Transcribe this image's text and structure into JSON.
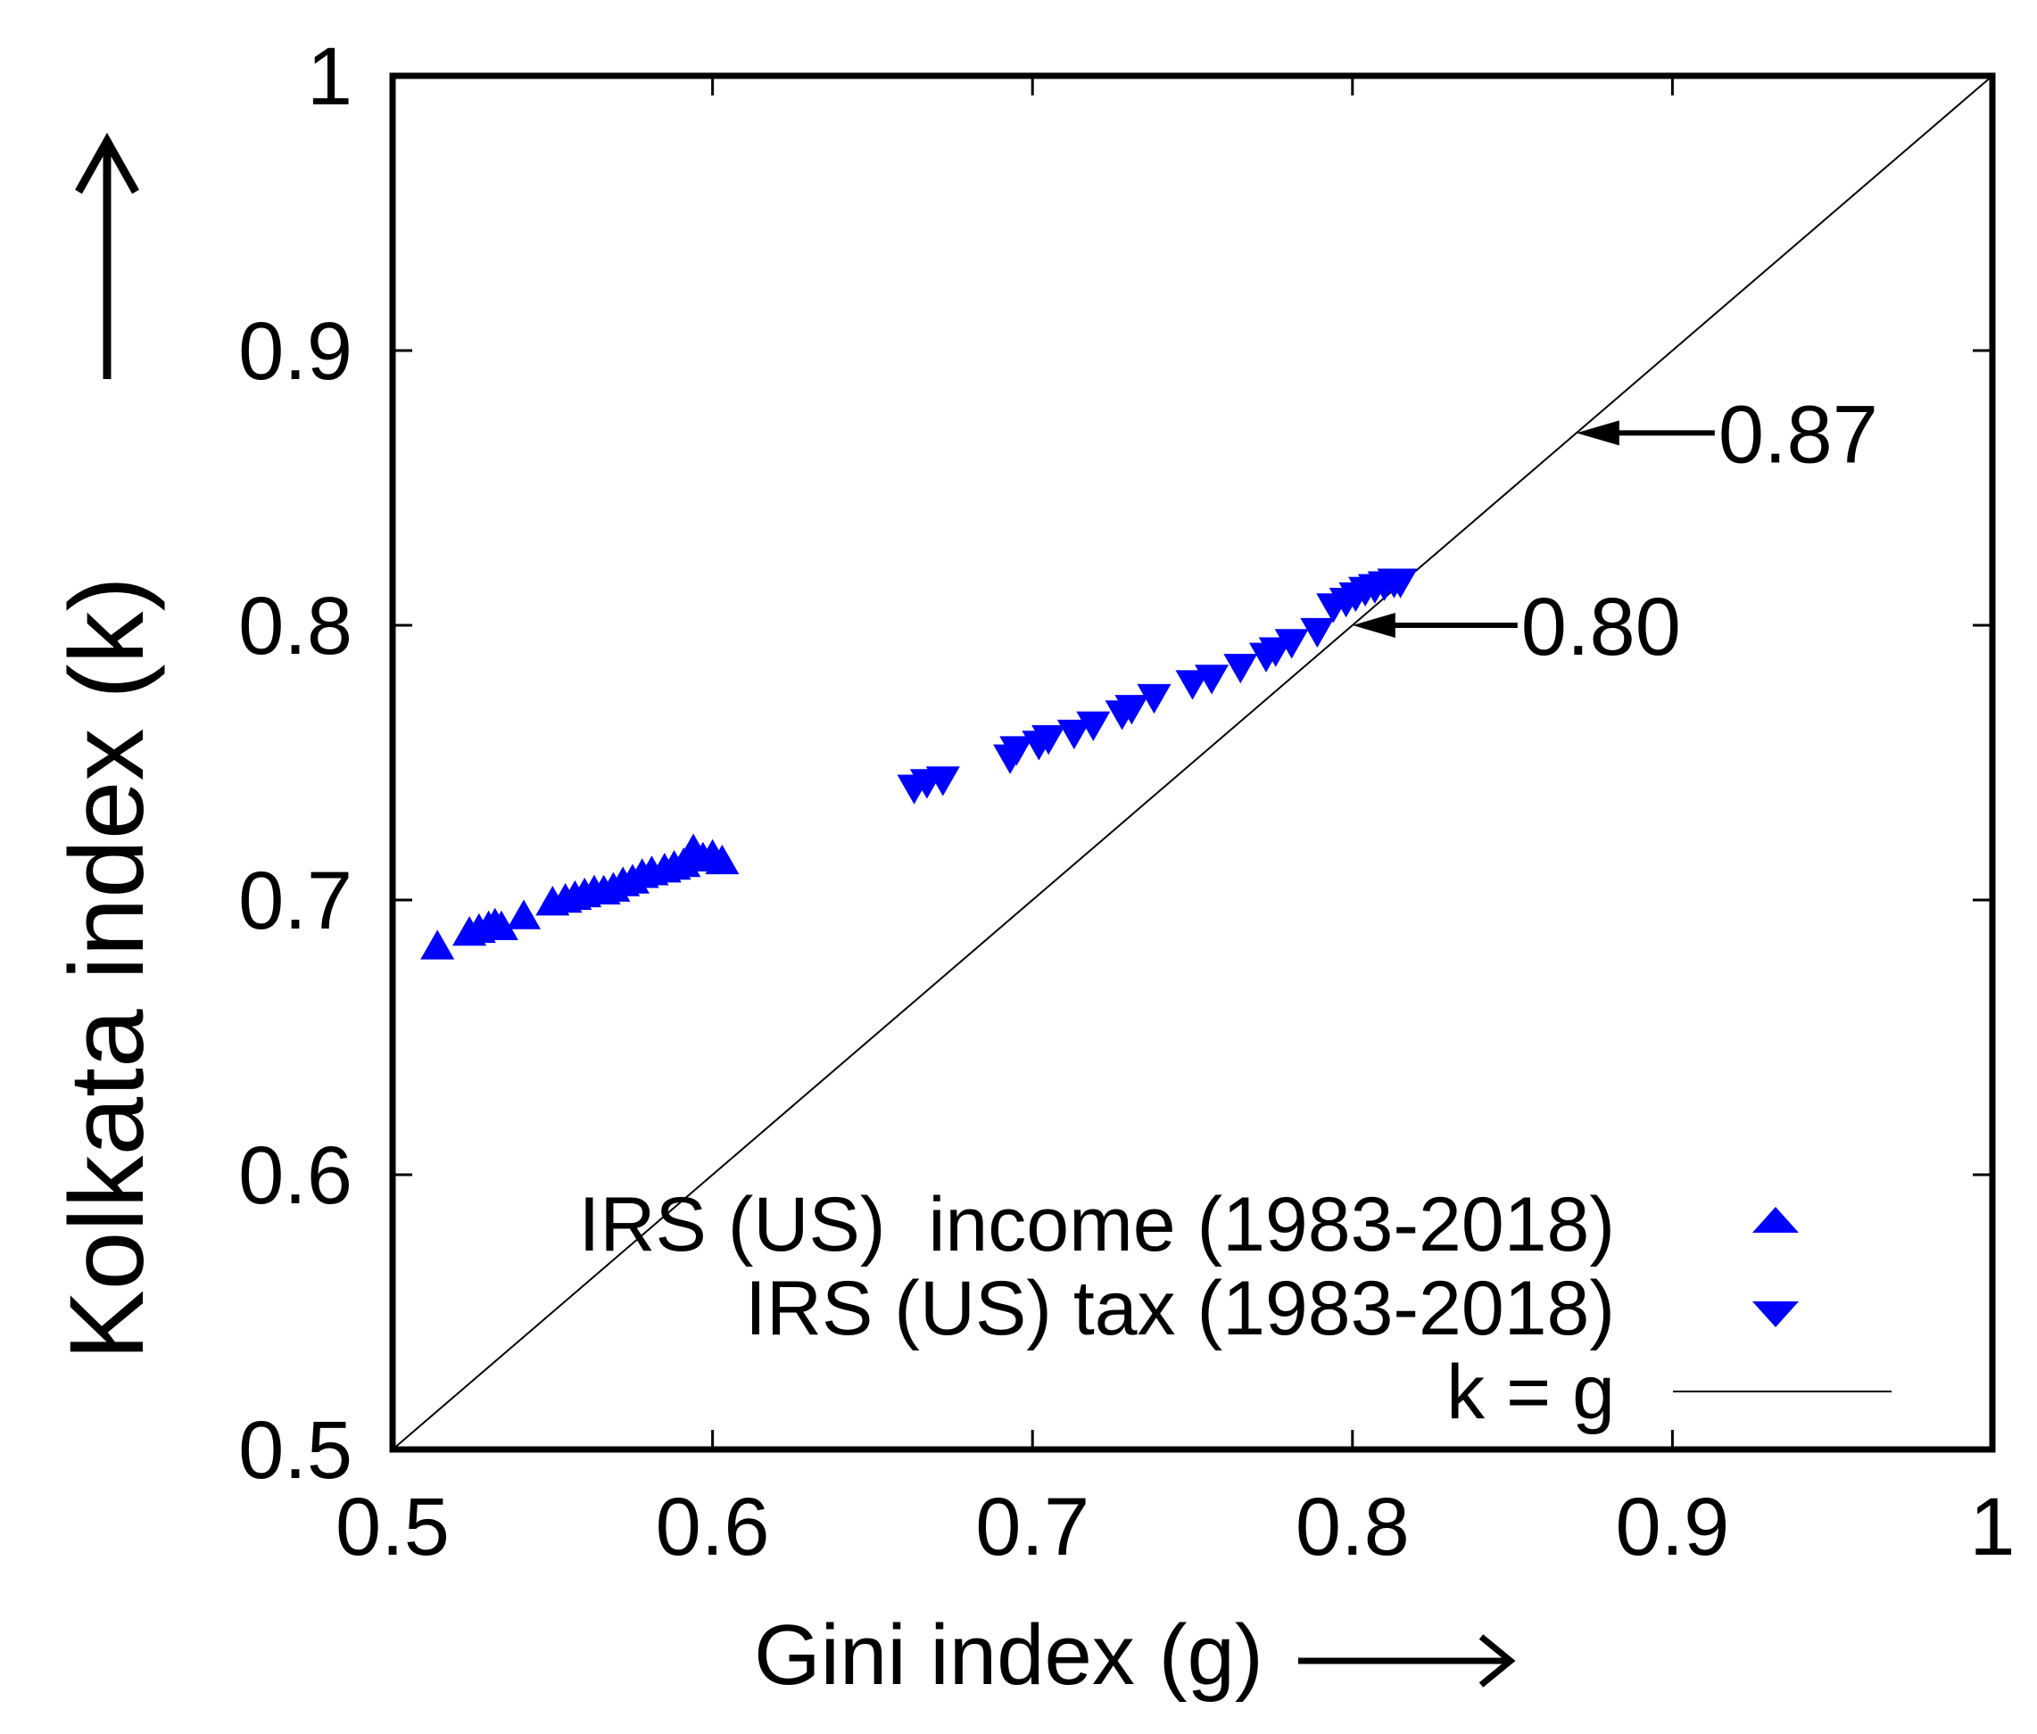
{
  "chart_data": {
    "type": "scatter",
    "title": "",
    "xlabel": "Gini index (g)",
    "ylabel": "Kolkata index (k)",
    "xlim": [
      0.5,
      1.0
    ],
    "ylim": [
      0.5,
      1.0
    ],
    "xticks": [
      0.5,
      0.6,
      0.7,
      0.8,
      0.9,
      1.0
    ],
    "yticks": [
      0.5,
      0.6,
      0.7,
      0.8,
      0.9,
      1.0
    ],
    "xtick_labels": [
      "0.5",
      "0.6",
      "0.7",
      "0.8",
      "0.9",
      "1"
    ],
    "ytick_labels": [
      "0.5",
      "0.6",
      "0.7",
      "0.8",
      "0.9",
      "1"
    ],
    "grid": false,
    "legend_position": "bottom-right",
    "series": [
      {
        "name": "IRS (US)  income (1983-2018)",
        "marker": "triangle-up",
        "color": "#0000ff",
        "points": [
          [
            0.514,
            0.683
          ],
          [
            0.524,
            0.688
          ],
          [
            0.527,
            0.689
          ],
          [
            0.53,
            0.69
          ],
          [
            0.532,
            0.691
          ],
          [
            0.534,
            0.69
          ],
          [
            0.541,
            0.694
          ],
          [
            0.55,
            0.699
          ],
          [
            0.554,
            0.7
          ],
          [
            0.557,
            0.701
          ],
          [
            0.56,
            0.702
          ],
          [
            0.563,
            0.703
          ],
          [
            0.566,
            0.703
          ],
          [
            0.569,
            0.704
          ],
          [
            0.572,
            0.706
          ],
          [
            0.575,
            0.707
          ],
          [
            0.578,
            0.709
          ],
          [
            0.581,
            0.71
          ],
          [
            0.585,
            0.711
          ],
          [
            0.588,
            0.712
          ],
          [
            0.591,
            0.713
          ],
          [
            0.594,
            0.718
          ],
          [
            0.597,
            0.715
          ],
          [
            0.6,
            0.716
          ],
          [
            0.603,
            0.714
          ]
        ]
      },
      {
        "name": "IRS (US) tax (1983-2018)",
        "marker": "triangle-down",
        "color": "#0000ff",
        "points": [
          [
            0.663,
            0.741
          ],
          [
            0.667,
            0.743
          ],
          [
            0.672,
            0.744
          ],
          [
            0.693,
            0.752
          ],
          [
            0.695,
            0.755
          ],
          [
            0.702,
            0.757
          ],
          [
            0.705,
            0.759
          ],
          [
            0.713,
            0.761
          ],
          [
            0.719,
            0.764
          ],
          [
            0.728,
            0.768
          ],
          [
            0.731,
            0.77
          ],
          [
            0.738,
            0.774
          ],
          [
            0.75,
            0.779
          ],
          [
            0.756,
            0.781
          ],
          [
            0.765,
            0.785
          ],
          [
            0.773,
            0.789
          ],
          [
            0.776,
            0.791
          ],
          [
            0.781,
            0.794
          ],
          [
            0.789,
            0.798
          ],
          [
            0.794,
            0.807
          ],
          [
            0.798,
            0.809
          ],
          [
            0.801,
            0.811
          ],
          [
            0.804,
            0.813
          ],
          [
            0.807,
            0.814
          ],
          [
            0.81,
            0.815
          ],
          [
            0.813,
            0.816
          ],
          [
            0.815,
            0.816
          ]
        ]
      },
      {
        "name": "k = g",
        "type": "line",
        "color": "#000000",
        "points": [
          [
            0.5,
            0.5
          ],
          [
            1.0,
            1.0
          ]
        ]
      }
    ],
    "annotations": [
      {
        "text": "0.87",
        "x": 0.87,
        "y": 0.87,
        "arrow": "left"
      },
      {
        "text": "0.80",
        "x": 0.8,
        "y": 0.8,
        "arrow": "left"
      }
    ]
  }
}
